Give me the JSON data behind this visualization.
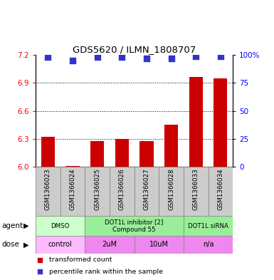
{
  "title": "GDS5620 / ILMN_1808707",
  "samples": [
    "GSM1366023",
    "GSM1366024",
    "GSM1366025",
    "GSM1366026",
    "GSM1366027",
    "GSM1366028",
    "GSM1366033",
    "GSM1366034"
  ],
  "bar_values": [
    6.32,
    6.01,
    6.28,
    6.3,
    6.28,
    6.45,
    6.96,
    6.95
  ],
  "dot_values": [
    98,
    95,
    98,
    98,
    97,
    97,
    99,
    99
  ],
  "bar_color": "#cc0000",
  "dot_color": "#3333cc",
  "ylim_left": [
    6.0,
    7.2
  ],
  "ylim_right": [
    0,
    100
  ],
  "yticks_left": [
    6.0,
    6.3,
    6.6,
    6.9,
    7.2
  ],
  "yticks_right": [
    0,
    25,
    50,
    75,
    100
  ],
  "ytick_labels_right": [
    "0",
    "25",
    "50",
    "75",
    "100%"
  ],
  "grid_values": [
    6.3,
    6.6,
    6.9
  ],
  "agents": [
    {
      "label": "DMSO",
      "start": 0,
      "end": 2,
      "color": "#ccffcc"
    },
    {
      "label": "DOT1L inhibitor [2]\nCompound 55",
      "start": 2,
      "end": 6,
      "color": "#99ee99"
    },
    {
      "label": "DOT1L siRNA",
      "start": 6,
      "end": 8,
      "color": "#99ee99"
    }
  ],
  "doses": [
    {
      "label": "control",
      "start": 0,
      "end": 2,
      "color": "#ffbbff"
    },
    {
      "label": "2uM",
      "start": 2,
      "end": 4,
      "color": "#ee88ee"
    },
    {
      "label": "10uM",
      "start": 4,
      "end": 6,
      "color": "#ee88ee"
    },
    {
      "label": "n/a",
      "start": 6,
      "end": 8,
      "color": "#ee88ee"
    }
  ],
  "legend_items": [
    {
      "label": "transformed count",
      "color": "#cc0000"
    },
    {
      "label": "percentile rank within the sample",
      "color": "#3333cc"
    }
  ],
  "agent_label": "agent",
  "dose_label": "dose",
  "bar_width": 0.55,
  "dot_size": 30,
  "sample_cell_color": "#cccccc",
  "sample_cell_border": "#888888"
}
